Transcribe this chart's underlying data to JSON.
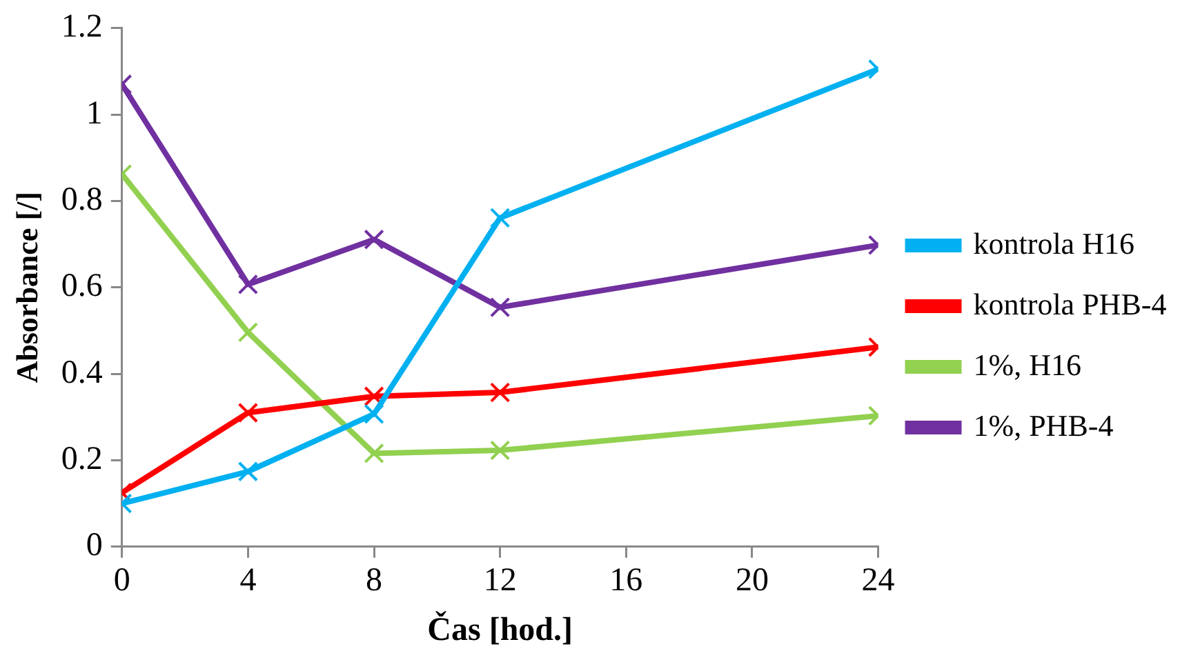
{
  "chart_data": {
    "type": "line",
    "xlabel": "Čas [hod.]",
    "ylabel": "Absorbance [/]",
    "x": [
      0,
      4,
      8,
      12,
      24
    ],
    "series": [
      {
        "name": "kontrola H16",
        "color": "#00b0f0",
        "values": [
          0.1,
          0.174,
          0.307,
          0.761,
          1.105
        ]
      },
      {
        "name": "kontrola PHB-4",
        "color": "#ff0000",
        "values": [
          0.125,
          0.31,
          0.348,
          0.357,
          0.462
        ]
      },
      {
        "name": "1%, H16",
        "color": "#92d050",
        "values": [
          0.862,
          0.496,
          0.216,
          0.223,
          0.303
        ]
      },
      {
        "name": "1%, PHB-4",
        "color": "#7030a0",
        "values": [
          1.07,
          0.607,
          0.711,
          0.554,
          0.698
        ]
      }
    ],
    "xlim": [
      0,
      24
    ],
    "xticks": [
      0,
      4,
      8,
      12,
      16,
      20,
      24
    ],
    "ylim": [
      0,
      1.2
    ],
    "yticks": [
      0,
      0.2,
      0.4,
      0.6,
      0.8,
      1,
      1.2
    ],
    "grid": false,
    "legend": "right",
    "marker": "cross",
    "line_style": "solid"
  }
}
